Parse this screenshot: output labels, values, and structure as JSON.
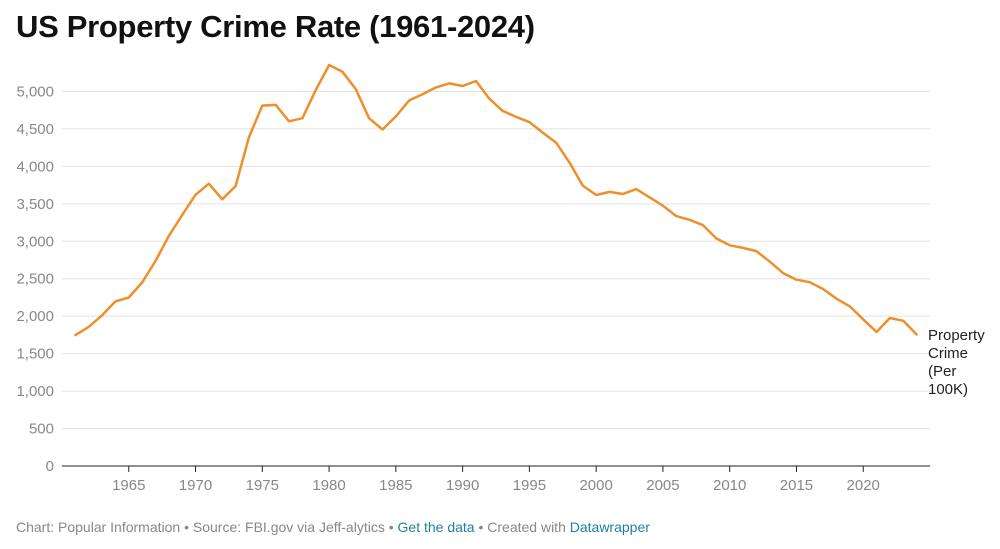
{
  "title": "US Property Crime Rate (1961-2024)",
  "footer": {
    "credit": "Chart: Popular Information",
    "source": "Source: FBI.gov via Jeff-alytics",
    "get_data": "Get the data",
    "created_with": "Created with",
    "tool": "Datawrapper",
    "separator": " • "
  },
  "chart_data": {
    "type": "line",
    "title": "US Property Crime Rate (1961-2024)",
    "xlabel": "",
    "ylabel": "",
    "xlim": [
      1960,
      2025
    ],
    "ylim": [
      0,
      5500
    ],
    "x_ticks": [
      1965,
      1970,
      1975,
      1980,
      1985,
      1990,
      1995,
      2000,
      2005,
      2010,
      2015,
      2020
    ],
    "y_ticks": [
      0,
      500,
      1000,
      1500,
      2000,
      2500,
      3000,
      3500,
      4000,
      4500,
      5000
    ],
    "y_tick_labels": [
      "0",
      "500",
      "1,000",
      "1,500",
      "2,000",
      "2,500",
      "3,000",
      "3,500",
      "4,000",
      "4,500",
      "5,000"
    ],
    "grid": true,
    "color": "#ee8f2a",
    "series": [
      {
        "name": "Property Crime (Per 100K)",
        "label_lines": [
          "Property",
          "Crime",
          "(Per",
          "100K)"
        ],
        "x": [
          1961,
          1962,
          1963,
          1964,
          1965,
          1966,
          1967,
          1968,
          1969,
          1970,
          1971,
          1972,
          1973,
          1974,
          1975,
          1976,
          1977,
          1978,
          1979,
          1980,
          1981,
          1982,
          1983,
          1984,
          1985,
          1986,
          1987,
          1988,
          1989,
          1990,
          1991,
          1992,
          1993,
          1994,
          1995,
          1996,
          1997,
          1998,
          1999,
          2000,
          2001,
          2002,
          2003,
          2004,
          2005,
          2006,
          2007,
          2008,
          2009,
          2010,
          2011,
          2012,
          2013,
          2014,
          2015,
          2016,
          2017,
          2018,
          2019,
          2020,
          2021,
          2022,
          2023,
          2024
        ],
        "values": [
          1747,
          1857,
          2012,
          2197,
          2249,
          2450,
          2736,
          3071,
          3351,
          3621,
          3768,
          3560,
          3737,
          4390,
          4811,
          4820,
          4601,
          4643,
          5017,
          5353,
          5264,
          5032,
          4642,
          4492,
          4666,
          4881,
          4963,
          5054,
          5107,
          5073,
          5140,
          4903,
          4741,
          4660,
          4591,
          4451,
          4317,
          4053,
          3743,
          3618,
          3659,
          3631,
          3697,
          3587,
          3475,
          3336,
          3286,
          3215,
          3038,
          2946,
          2911,
          2869,
          2727,
          2575,
          2487,
          2454,
          2362,
          2234,
          2131,
          1957,
          1790,
          1976,
          1938,
          1756
        ]
      }
    ]
  }
}
